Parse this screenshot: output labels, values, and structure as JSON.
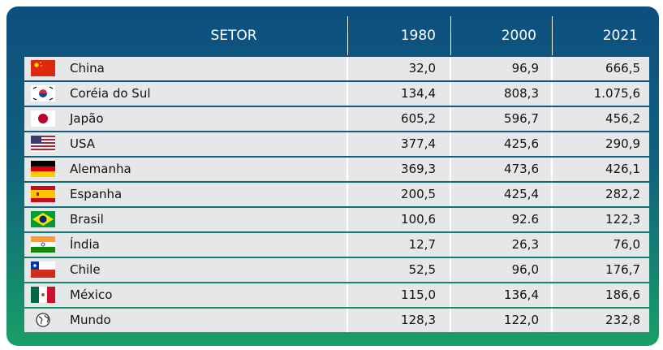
{
  "table": {
    "header": [
      "SETOR",
      "1980",
      "2000",
      "2021"
    ],
    "rows": [
      [
        "China",
        "32,0",
        "96,9",
        "666,5"
      ],
      [
        "Coréia do Sul",
        "134,4",
        "808,3",
        "1.075,6"
      ],
      [
        "Japão",
        "605,2",
        "596,7",
        "456,2"
      ],
      [
        "USA",
        "377,4",
        "425,6",
        "290,9"
      ],
      [
        "Alemanha",
        "369,3",
        "473,6",
        "426,1"
      ],
      [
        "Espanha",
        "200,5",
        "425,4",
        "282,2"
      ],
      [
        "Brasil",
        "100,6",
        "92.6",
        "122,3"
      ],
      [
        "Índia",
        "12,7",
        "26,3",
        "76,0"
      ],
      [
        "Chile",
        "52,5",
        "96,0",
        "176,7"
      ],
      [
        "México",
        "115,0",
        "136,4",
        "186,6"
      ],
      [
        "Mundo",
        "128,3",
        "122,0",
        "232,8"
      ]
    ]
  }
}
